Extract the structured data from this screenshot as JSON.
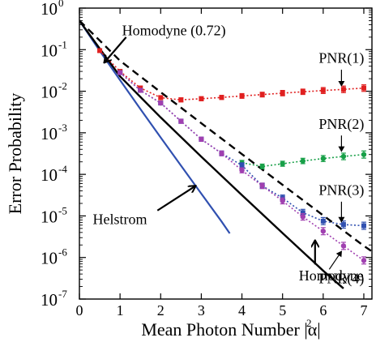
{
  "chart_data": {
    "type": "line",
    "xlabel": "Mean Photon Number |α|",
    "xlabel_sup": "2",
    "ylabel": "Error Probability",
    "xlim": [
      0,
      7.2
    ],
    "ylim": [
      1e-07,
      1
    ],
    "y_scale": "log",
    "grid": false,
    "x_ticks": [
      0,
      1,
      2,
      3,
      4,
      5,
      6,
      7
    ],
    "x_tick_labels": [
      "0",
      "1",
      "2",
      "3",
      "4",
      "5",
      "6",
      "7"
    ],
    "y_ticks": [
      {
        "value": 1,
        "base": "10",
        "exp": "0"
      },
      {
        "value": 0.1,
        "base": "10",
        "exp": "-1"
      },
      {
        "value": 0.01,
        "base": "10",
        "exp": "-2"
      },
      {
        "value": 0.001,
        "base": "10",
        "exp": "-3"
      },
      {
        "value": 0.0001,
        "base": "10",
        "exp": "-4"
      },
      {
        "value": 1e-05,
        "base": "10",
        "exp": "-5"
      },
      {
        "value": 1e-06,
        "base": "10",
        "exp": "-6"
      },
      {
        "value": 1e-07,
        "base": "10",
        "exp": "-7"
      }
    ],
    "series": [
      {
        "kind": "curve",
        "color": "#3050b0",
        "style": "solid",
        "width": 2.2,
        "x": [
          0,
          0.5,
          1,
          1.5,
          2,
          2.5,
          3,
          3.5,
          3.7
        ],
        "y": [
          0.5,
          0.0936,
          0.0185,
          0.00374,
          0.000773,
          0.000162,
          3.43e-05,
          7.3e-06,
          3.8e-06
        ]
      },
      {
        "kind": "curve",
        "color": "#000000",
        "style": "solid",
        "width": 2.4,
        "x": [
          0,
          0.5,
          1,
          2,
          3,
          4,
          5,
          6,
          6.5
        ],
        "y": [
          0.5,
          0.106,
          0.0228,
          0.00234,
          0.000266,
          3.17e-05,
          3.87e-06,
          4.8e-07,
          1.8e-07
        ]
      },
      {
        "kind": "curve",
        "color": "#000000",
        "style": "dash",
        "width": 2.4,
        "x": [
          0,
          0.5,
          1,
          2,
          3,
          4,
          5,
          6,
          7,
          7.2
        ],
        "y": [
          0.5,
          0.166,
          0.0541,
          0.00951,
          0.0017,
          0.000307,
          5.6e-05,
          1.03e-05,
          1.9e-06,
          1.4e-06
        ]
      },
      {
        "kind": "points",
        "color": "#e02020",
        "marker": "square",
        "fit": "dotted",
        "x": [
          0.5,
          1.0,
          1.5,
          2.0,
          2.5,
          3.0,
          3.5,
          4.0,
          4.5,
          5.0,
          5.5,
          6.0,
          6.5,
          7.0
        ],
        "y": [
          0.095,
          0.03,
          0.012,
          0.007,
          0.0062,
          0.0066,
          0.0071,
          0.0077,
          0.0083,
          0.009,
          0.0097,
          0.0104,
          0.0111,
          0.0119
        ],
        "err": [
          0.1,
          0.1,
          0.1,
          0.12,
          0.12,
          0.12,
          0.12,
          0.14,
          0.14,
          0.16,
          0.16,
          0.18,
          0.2,
          0.2
        ]
      },
      {
        "kind": "points",
        "color": "#18a048",
        "marker": "circle",
        "fit": "dotted",
        "x": [
          4.0,
          4.5,
          5.0,
          5.5,
          6.0,
          6.5,
          7.0
        ],
        "y": [
          0.00019,
          0.000155,
          0.00018,
          0.00021,
          0.00024,
          0.00027,
          0.0003
        ],
        "err": [
          0.14,
          0.14,
          0.15,
          0.16,
          0.18,
          0.2,
          0.22
        ]
      },
      {
        "kind": "points",
        "color": "#3050b0",
        "marker": "square",
        "fit": "dotted",
        "x": [
          1.0,
          1.5,
          2.0,
          2.5,
          3.0,
          3.5,
          4.0,
          4.5,
          5.0,
          5.5,
          6.0,
          6.5,
          7.0
        ],
        "y": [
          0.028,
          0.0105,
          0.0052,
          0.0019,
          0.0007,
          0.00032,
          0.000165,
          5.3e-05,
          2.7e-05,
          1.2e-05,
          7.5e-06,
          6.2e-06,
          5.8e-06
        ],
        "err": [
          0.1,
          0.1,
          0.1,
          0.12,
          0.12,
          0.14,
          0.15,
          0.16,
          0.18,
          0.2,
          0.22,
          0.22,
          0.22
        ]
      },
      {
        "kind": "points",
        "color": "#a040b0",
        "marker": "circle",
        "fit": "dotted",
        "x": [
          1.0,
          1.5,
          2.0,
          2.5,
          3.0,
          3.5,
          4.0,
          4.5,
          5.0,
          5.5,
          6.0,
          6.5,
          7.0
        ],
        "y": [
          0.028,
          0.0105,
          0.0052,
          0.0019,
          0.0007,
          0.00032,
          0.000125,
          5.3e-05,
          2.3e-05,
          9.5e-06,
          4.3e-06,
          1.9e-06,
          8.5e-07
        ],
        "err": [
          0.1,
          0.1,
          0.1,
          0.12,
          0.12,
          0.14,
          0.15,
          0.16,
          0.18,
          0.2,
          0.22,
          0.22,
          0.22
        ]
      }
    ],
    "annotations": [
      {
        "text": "Homodyne (0.72)",
        "x": 1.05,
        "y": 0.22,
        "anchor": "start",
        "arrow_from": [
          1.15,
          0.2
        ],
        "arrow_to": [
          0.62,
          0.05
        ]
      },
      {
        "text": "Helstrom",
        "x": 0.33,
        "y": 6.3e-06,
        "anchor": "start",
        "arrow_from": [
          1.92,
          1.35e-05
        ],
        "arrow_to": [
          2.85,
          5.2e-05
        ]
      },
      {
        "text": "Homodyne",
        "x": 5.4,
        "y": 2.8e-07,
        "anchor": "start",
        "arrow_from": [
          5.8,
          6.8e-07
        ],
        "arrow_to": [
          5.8,
          2.5e-06
        ]
      },
      {
        "text": "PNR(1)",
        "x": 6.45,
        "y": 0.048,
        "anchor": "middle",
        "arrow_from": [
          6.45,
          0.033
        ],
        "arrow_to": [
          6.45,
          0.0135
        ]
      },
      {
        "text": "PNR(2)",
        "x": 6.45,
        "y": 0.00125,
        "anchor": "middle",
        "arrow_from": [
          6.45,
          0.00086
        ],
        "arrow_to": [
          6.45,
          0.00036
        ]
      },
      {
        "text": "PNR(3)",
        "x": 6.45,
        "y": 3.2e-05,
        "anchor": "middle",
        "arrow_from": [
          6.45,
          2.2e-05
        ],
        "arrow_to": [
          6.45,
          7.2e-06
        ]
      },
      {
        "text": "PNR(4)",
        "x": 6.45,
        "y": 2.4e-07,
        "anchor": "middle",
        "arrow_from": [
          6.15,
          5.2e-07
        ],
        "arrow_to": [
          6.45,
          1.4e-06
        ]
      }
    ]
  }
}
